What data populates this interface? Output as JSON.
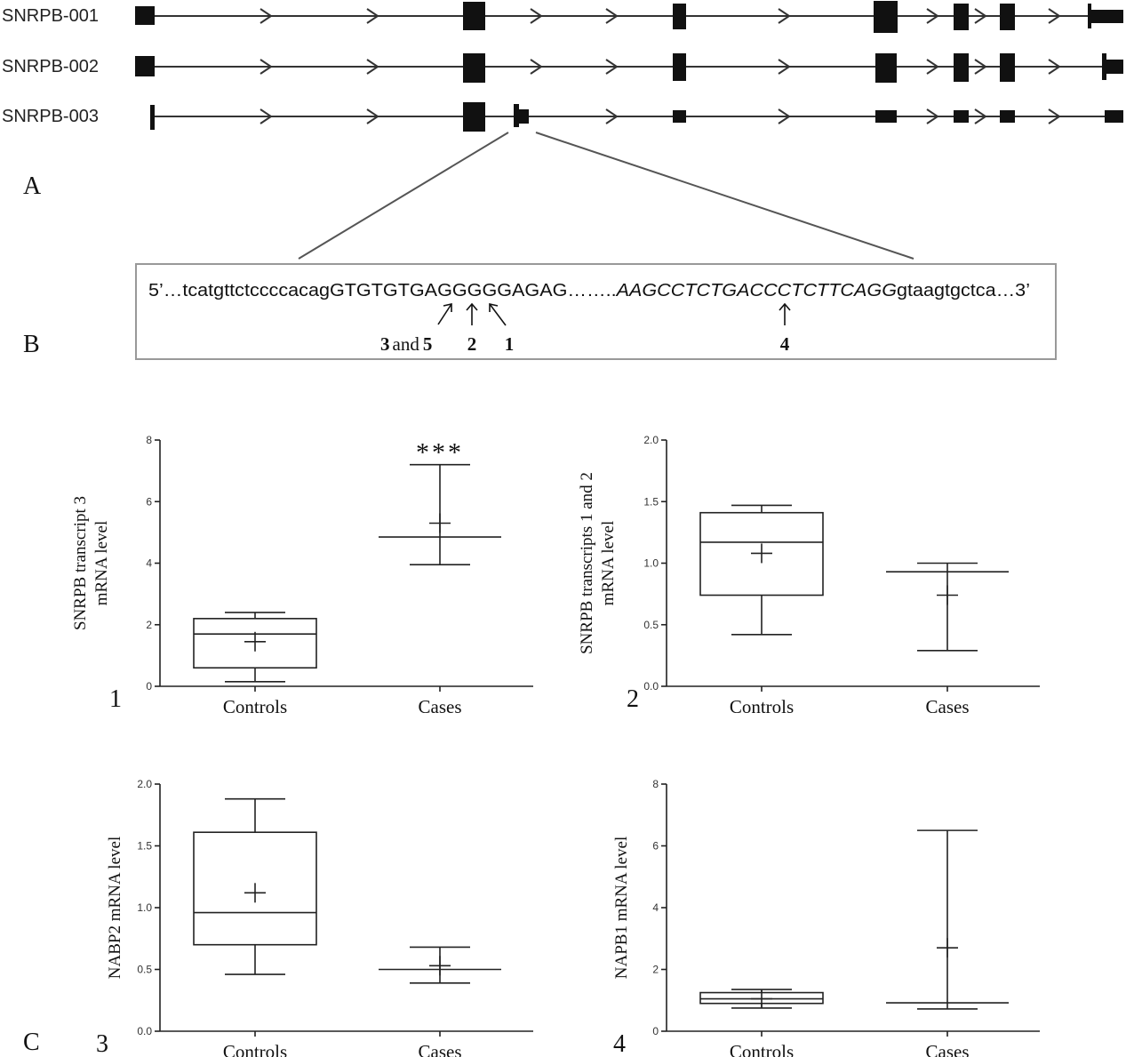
{
  "panel_letters": {
    "a": "A",
    "b": "B",
    "c": "C"
  },
  "transcripts": [
    {
      "name": "SNRPB-001"
    },
    {
      "name": "SNRPB-002"
    },
    {
      "name": "SNRPB-003"
    }
  ],
  "sequence": {
    "prefix": "5’…tcatgttctccccacagGTGTGTGAGGGGGAGAG……..",
    "italic": "AAGCCTCTGACCCTCTTCAGG",
    "suffix": "gtaagtgctca…3’",
    "arrow_labels": {
      "left_three": "3",
      "left_and": "and",
      "left_five": "5",
      "two": "2",
      "one": "1",
      "four": "4"
    }
  },
  "chart_data": [
    {
      "type": "box",
      "panel_number": "1",
      "categories": [
        "Controls",
        "Cases"
      ],
      "ylabel_lines": [
        "SNRPB transcript 3",
        "mRNA level"
      ],
      "ylim": [
        0,
        8
      ],
      "yticks": [
        "0",
        "2",
        "4",
        "6",
        "8"
      ],
      "annotation": "***",
      "boxes": [
        {
          "min": 0.15,
          "q1": 0.6,
          "median": 1.7,
          "q3": 2.2,
          "max": 2.4,
          "mean": 1.45
        },
        {
          "min": 3.95,
          "q1": 4.85,
          "median": 4.85,
          "q3": 4.85,
          "max": 7.2,
          "mean": 5.3
        }
      ]
    },
    {
      "type": "box",
      "panel_number": "2",
      "categories": [
        "Controls",
        "Cases"
      ],
      "ylabel_lines": [
        "SNRPB transcripts 1 and 2",
        "mRNA level"
      ],
      "ylim": [
        0,
        2
      ],
      "yticks": [
        "0.0",
        "0.5",
        "1.0",
        "1.5",
        "2.0"
      ],
      "annotation": "",
      "boxes": [
        {
          "min": 0.42,
          "q1": 0.74,
          "median": 1.17,
          "q3": 1.41,
          "max": 1.47,
          "mean": 1.08
        },
        {
          "min": 0.29,
          "q1": 0.93,
          "median": 0.93,
          "q3": 0.93,
          "max": 1.0,
          "mean": 0.74
        }
      ]
    },
    {
      "type": "box",
      "panel_number": "3",
      "categories": [
        "Controls",
        "Cases"
      ],
      "ylabel_lines": [
        "NABP2 mRNA level"
      ],
      "ylim": [
        0,
        2
      ],
      "yticks": [
        "0.0",
        "0.5",
        "1.0",
        "1.5",
        "2.0"
      ],
      "annotation": "",
      "boxes": [
        {
          "min": 0.46,
          "q1": 0.7,
          "median": 0.96,
          "q3": 1.61,
          "max": 1.88,
          "mean": 1.12
        },
        {
          "min": 0.39,
          "q1": 0.5,
          "median": 0.5,
          "q3": 0.5,
          "max": 0.68,
          "mean": 0.53
        }
      ]
    },
    {
      "type": "box",
      "panel_number": "4",
      "categories": [
        "Controls",
        "Cases"
      ],
      "ylabel_lines": [
        "NAPB1 mRNA level"
      ],
      "ylim": [
        0,
        8
      ],
      "yticks": [
        "0",
        "2",
        "4",
        "6",
        "8"
      ],
      "annotation": "",
      "boxes": [
        {
          "min": 0.75,
          "q1": 0.9,
          "median": 1.05,
          "q3": 1.25,
          "max": 1.35,
          "mean": 1.05
        },
        {
          "min": 0.72,
          "q1": 0.92,
          "median": 0.92,
          "q3": 0.92,
          "max": 6.5,
          "mean": 2.7
        }
      ]
    }
  ]
}
